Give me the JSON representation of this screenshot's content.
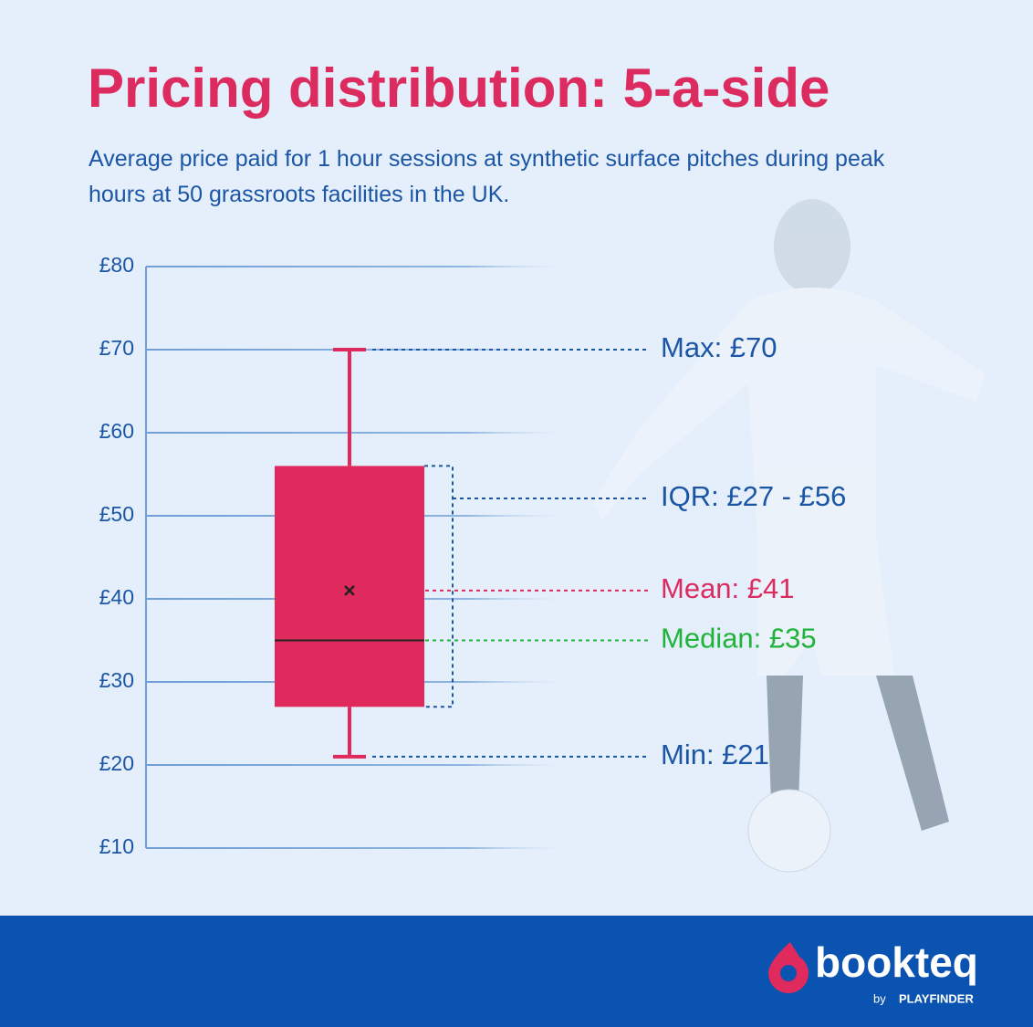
{
  "chart_data": {
    "type": "box",
    "title": "Pricing distribution: 5-a-side",
    "subtitle": "Average price paid for 1 hour sessions at synthetic surface pitches during peak hours at 50 grassroots facilities in the UK.",
    "ylim": [
      10,
      80
    ],
    "yticks": [
      {
        "value": 10,
        "label": "£10"
      },
      {
        "value": 20,
        "label": "£20"
      },
      {
        "value": 30,
        "label": "£30"
      },
      {
        "value": 40,
        "label": "£40"
      },
      {
        "value": 50,
        "label": "£50"
      },
      {
        "value": 60,
        "label": "£60"
      },
      {
        "value": 70,
        "label": "£70"
      },
      {
        "value": 80,
        "label": "£80"
      }
    ],
    "grid": true,
    "boxes": [
      {
        "min": 21,
        "q1": 27,
        "median": 35,
        "mean": 41,
        "q3": 56,
        "max": 70,
        "color": "#e0295c"
      }
    ],
    "annotations": [
      "Max: £70",
      "IQR: £27 - £56",
      "Mean: £41",
      "Median: £35",
      "Min: £21"
    ]
  },
  "brand": {
    "name": "bookteq",
    "by": "by",
    "partner": "PLAYFINDER"
  }
}
